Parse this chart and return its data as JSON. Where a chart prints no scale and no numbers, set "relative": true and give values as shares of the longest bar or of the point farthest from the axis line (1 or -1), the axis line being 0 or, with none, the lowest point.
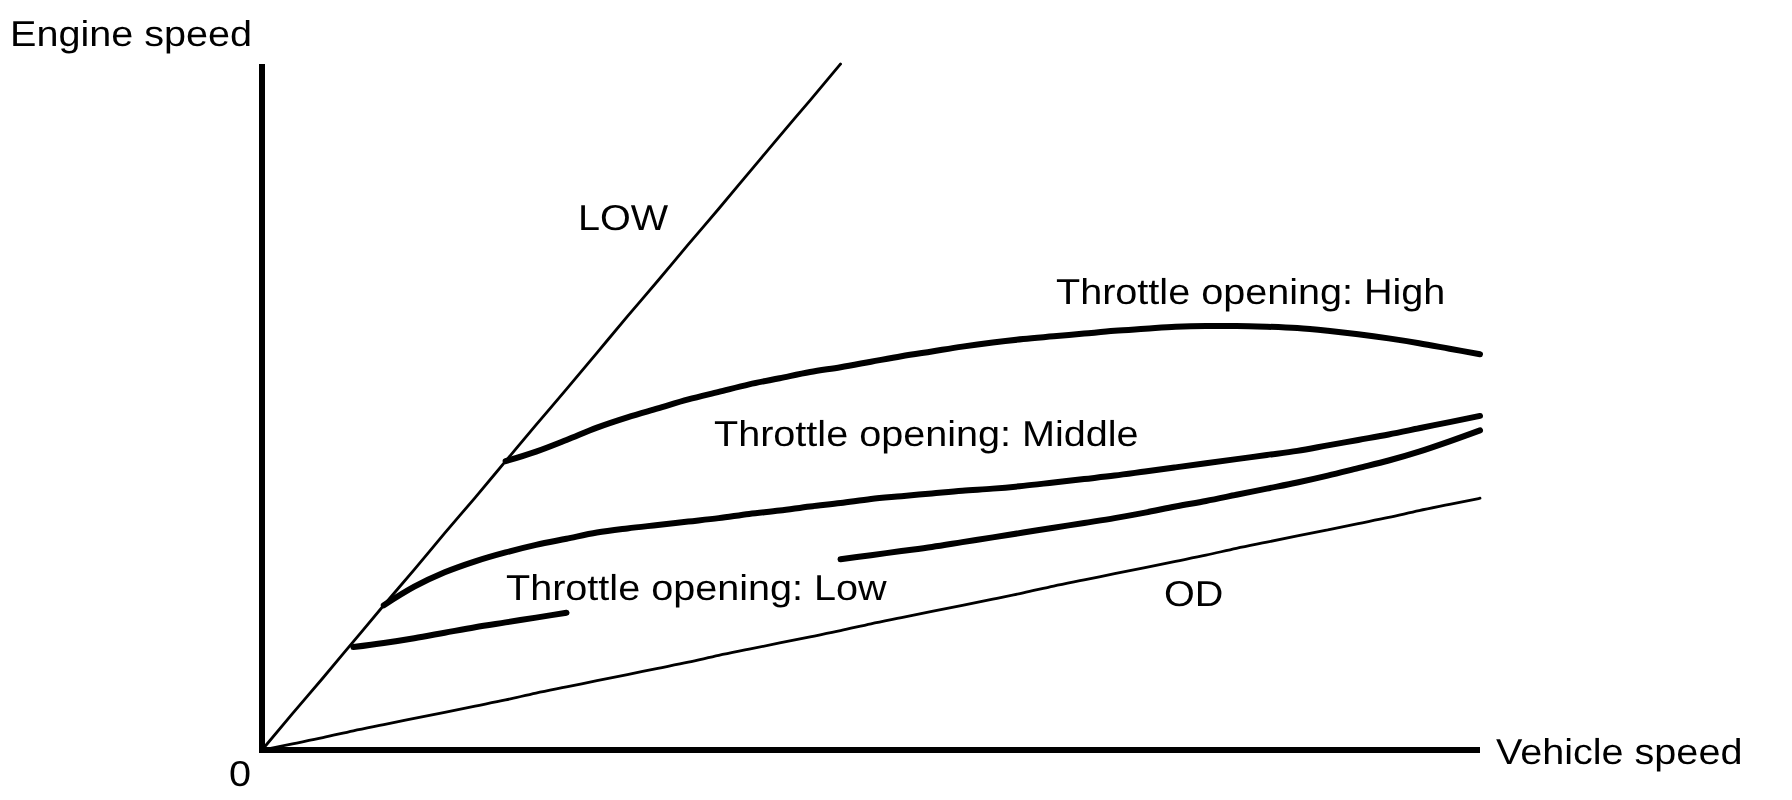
{
  "chart_data": {
    "type": "line",
    "relative": true,
    "xlabel": "Vehicle speed",
    "ylabel": "Engine speed",
    "annotations": [
      "0"
    ],
    "categories": [
      null,
      null,
      null,
      null,
      null,
      null,
      null,
      null,
      null,
      null,
      null,
      null,
      null,
      null,
      null,
      null,
      null,
      null,
      null,
      null,
      null,
      null,
      null,
      null,
      null,
      null,
      null,
      null,
      null,
      null,
      null,
      null,
      null,
      null,
      null,
      null,
      null,
      null,
      null,
      null,
      null
    ],
    "series": [
      {
        "name": "LOW",
        "color": "#000000",
        "values": [
          0,
          0.053,
          0.105,
          0.158,
          0.211,
          0.263,
          0.316,
          0.368,
          0.421,
          0.474,
          0.526,
          0.579,
          0.632,
          0.684,
          0.737,
          0.789,
          0.842,
          0.895,
          0.947,
          1,
          null,
          null,
          null,
          null,
          null,
          null,
          null,
          null,
          null,
          null,
          null,
          null,
          null,
          null,
          null,
          null,
          null,
          null,
          null,
          null,
          null
        ]
      },
      {
        "name": "Throttle opening: High",
        "color": "#000000",
        "values": [
          null,
          null,
          null,
          null,
          null,
          null,
          null,
          null,
          0.421,
          0.435,
          0.452,
          0.47,
          0.485,
          0.498,
          0.511,
          0.522,
          0.533,
          0.542,
          0.551,
          0.558,
          0.566,
          0.574,
          0.581,
          0.588,
          0.594,
          0.599,
          0.603,
          0.607,
          0.611,
          0.614,
          0.617,
          0.618,
          0.618,
          0.617,
          0.615,
          0.611,
          0.606,
          0.6,
          0.593,
          0.585,
          0.577
        ]
      },
      {
        "name": "Throttle opening: Middle",
        "color": "#000000",
        "values": [
          null,
          null,
          null,
          null,
          0.211,
          0.238,
          0.259,
          0.275,
          0.288,
          0.299,
          0.308,
          0.317,
          0.323,
          0.328,
          0.333,
          0.338,
          0.344,
          0.349,
          0.355,
          0.36,
          0.366,
          0.37,
          0.374,
          0.378,
          0.381,
          0.385,
          0.39,
          0.395,
          0.4,
          0.406,
          0.412,
          0.418,
          0.424,
          0.43,
          0.436,
          0.444,
          0.452,
          0.46,
          0.469,
          0.478,
          0.487
        ]
      },
      {
        "name": "Throttle opening: Low",
        "color": "#000000",
        "values": [
          null,
          null,
          null,
          0.15,
          0.156,
          0.163,
          0.171,
          0.179,
          0.186,
          0.193,
          0.2,
          null,
          null,
          null,
          null,
          null,
          null,
          null,
          null,
          0.278,
          0.284,
          0.29,
          0.296,
          0.303,
          0.31,
          0.317,
          0.324,
          0.331,
          0.338,
          0.346,
          0.355,
          0.363,
          0.372,
          0.381,
          0.39,
          0.4,
          0.411,
          0.422,
          0.435,
          0.45,
          0.466
        ]
      },
      {
        "name": "OD",
        "color": "#000000",
        "values": [
          0,
          0.009,
          0.018,
          0.028,
          0.037,
          0.046,
          0.055,
          0.064,
          0.073,
          0.083,
          0.092,
          0.101,
          0.11,
          0.119,
          0.128,
          0.138,
          0.147,
          0.156,
          0.165,
          0.174,
          0.184,
          0.193,
          0.202,
          0.211,
          0.22,
          0.229,
          0.239,
          0.248,
          0.257,
          0.266,
          0.275,
          0.284,
          0.294,
          0.303,
          0.312,
          0.321,
          0.33,
          0.339,
          0.349,
          0.358,
          0.367
        ]
      }
    ]
  }
}
